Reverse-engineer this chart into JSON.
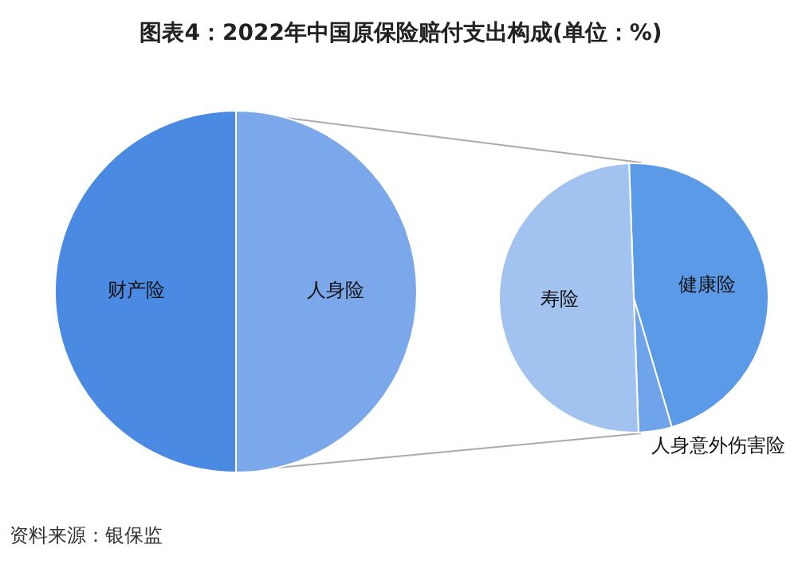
{
  "chart_data": [
    {
      "type": "pie",
      "title": "图表4：2022年中国原保险赔付支出构成(单位：%)",
      "categories": [
        "人身险",
        "财产险"
      ],
      "values": [
        50,
        50
      ],
      "colors": [
        "#7aa8ea",
        "#4a8ae2"
      ],
      "annotations": [
        "资料来源：银保监"
      ]
    },
    {
      "type": "pie",
      "categories": [
        "健康险",
        "人身意外伤害险",
        "寿险"
      ],
      "values": [
        46,
        4,
        50
      ],
      "colors": [
        "#5b9ae6",
        "#6fa3ea",
        "#a2c3f0"
      ]
    }
  ]
}
